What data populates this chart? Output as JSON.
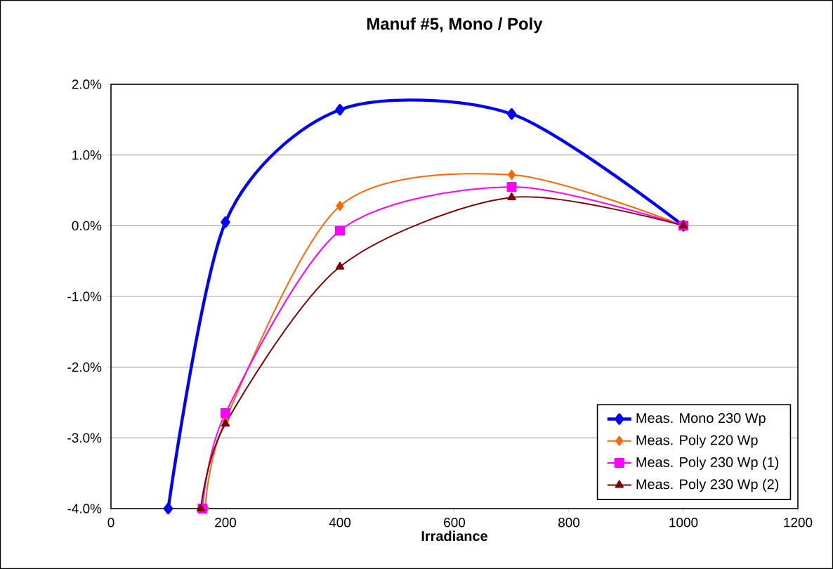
{
  "chart_data": {
    "type": "line",
    "title": "Manuf #5,   Mono / Poly",
    "xlabel": "Irradiance",
    "xlim": [
      0,
      1200
    ],
    "xticks": [
      0,
      200,
      400,
      600,
      800,
      1000,
      1200
    ],
    "ylim": [
      -4,
      2
    ],
    "yticks": [
      {
        "value": -4,
        "label": "-4.0%"
      },
      {
        "value": -3,
        "label": "-3.0%"
      },
      {
        "value": -2,
        "label": "-2.0%"
      },
      {
        "value": -1,
        "label": "-1.0%"
      },
      {
        "value": 0,
        "label": "0.0%"
      },
      {
        "value": 1,
        "label": "1.0%"
      },
      {
        "value": 2,
        "label": "2.0%"
      }
    ],
    "grid": "y",
    "legend": "bottom right",
    "line_style": "solid",
    "series": [
      {
        "name": "Meas. Mono 230 Wp",
        "color": "#0000ff",
        "marker": "diamond",
        "x": [
          100,
          200,
          400,
          700,
          1000
        ],
        "values": [
          -4.0,
          0.05,
          1.64,
          1.58,
          0.0
        ]
      },
      {
        "name": "Meas. Poly 220 Wp",
        "color": "#ff6600",
        "marker": "diamond",
        "x": [
          165,
          200,
          400,
          700,
          1000
        ],
        "values": [
          -4.0,
          -2.75,
          0.28,
          0.72,
          0.0
        ]
      },
      {
        "name": "Meas. Poly 230 Wp (1)",
        "color": "#ff00ff",
        "marker": "square",
        "x": [
          160,
          200,
          400,
          700,
          1000
        ],
        "values": [
          -4.0,
          -2.65,
          -0.07,
          0.55,
          0.0
        ]
      },
      {
        "name": "Meas. Poly 230 Wp (2)",
        "color": "#800000",
        "marker": "triangle",
        "x": [
          157,
          200,
          400,
          700,
          1000
        ],
        "values": [
          -4.0,
          -2.8,
          -0.58,
          0.4,
          0.0
        ]
      }
    ]
  }
}
